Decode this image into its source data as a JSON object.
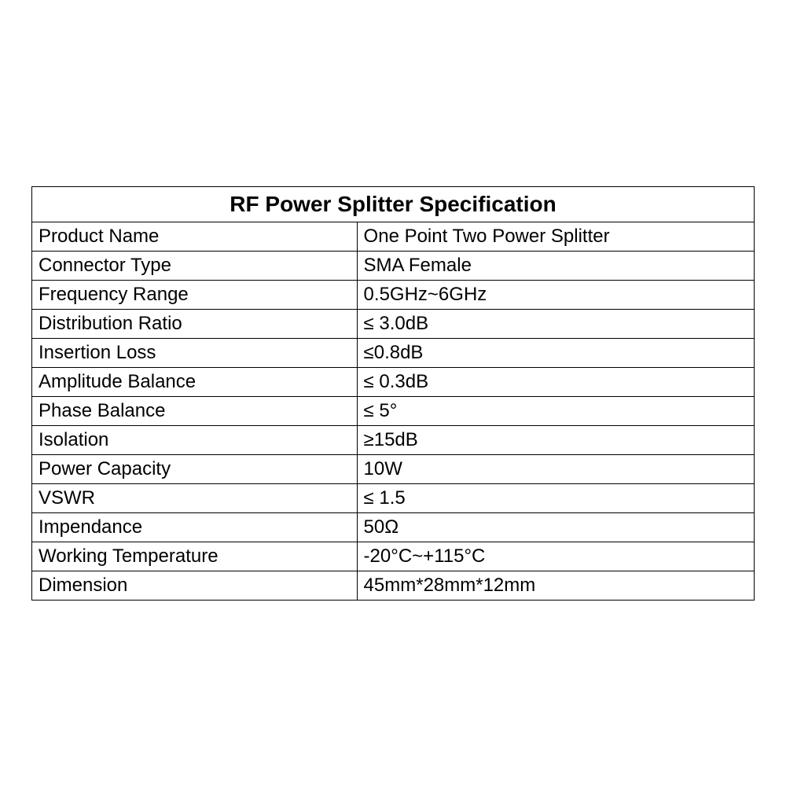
{
  "table": {
    "title": "RF Power Splitter Specification",
    "title_fontsize": 28,
    "title_fontweight": "bold",
    "cell_fontsize": 24,
    "border_color": "#000000",
    "text_color": "#000000",
    "background_color": "#ffffff",
    "column_widths": [
      "45%",
      "55%"
    ],
    "rows": [
      {
        "label": "Product Name",
        "value": "One Point Two Power Splitter"
      },
      {
        "label": "Connector Type",
        "value": "SMA Female"
      },
      {
        "label": "Frequency Range",
        "value": "0.5GHz~6GHz"
      },
      {
        "label": "Distribution Ratio",
        "value": "≤ 3.0dB"
      },
      {
        "label": "Insertion Loss",
        "value": "≤0.8dB"
      },
      {
        "label": "Amplitude Balance",
        "value": "≤ 0.3dB"
      },
      {
        "label": "Phase Balance",
        "value": "≤ 5°"
      },
      {
        "label": "Isolation",
        "value": "≥15dB"
      },
      {
        "label": "Power Capacity",
        "value": "10W"
      },
      {
        "label": "VSWR",
        "value": "≤ 1.5"
      },
      {
        "label": "Impendance",
        "value": "50Ω"
      },
      {
        "label": "Working Temperature",
        "value": " -20°C~+115°C"
      },
      {
        "label": "Dimension",
        "value": "45mm*28mm*12mm"
      }
    ]
  }
}
